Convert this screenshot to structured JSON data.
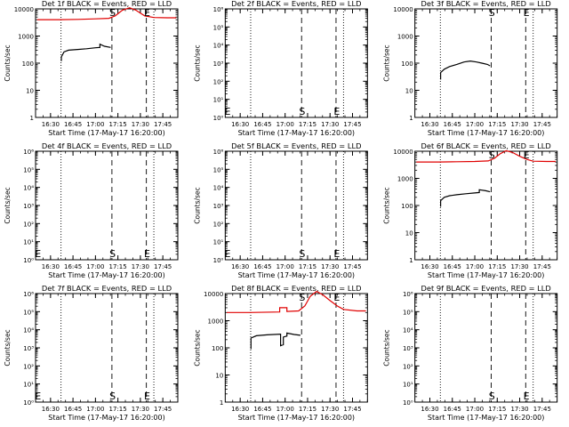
{
  "figure": {
    "x_ticks": [
      "16:30",
      "16:45",
      "17:00",
      "17:15",
      "17:30",
      "17:45"
    ],
    "x_tick_values": [
      16.5,
      16.75,
      17.0,
      17.25,
      17.5,
      17.75
    ],
    "x_range": [
      16.3333,
      17.9167
    ],
    "y_scale": "log",
    "y_range": [
      1,
      10000
    ],
    "dotted_lines_x": [
      16.6167,
      17.65
    ],
    "dashed_lines_x": [
      17.1833,
      17.5667
    ],
    "colors": {
      "events": "#000000",
      "lld": "#e00000",
      "axes": "#000000"
    }
  },
  "chart_data": [
    {
      "type": "line",
      "panel": 1,
      "title": "Det 1f BLACK = Events, RED = LLD",
      "xlabel": "Start Time (17-May-17 16:20:00)",
      "ylabel": "Counts/sec",
      "yticks": [
        "1",
        "10",
        "100",
        "1000",
        "10000"
      ],
      "markers": [
        {
          "label": "S",
          "x": 17.19,
          "y": 10000
        },
        {
          "label": "E",
          "x": 17.575,
          "y": 10000
        }
      ],
      "series": [
        {
          "color": "#000000",
          "x": [
            16.62,
            16.62,
            16.65,
            16.7,
            16.8,
            16.9,
            17.0,
            17.05,
            17.05,
            17.1,
            17.17
          ],
          "y": [
            120,
            170,
            260,
            300,
            320,
            340,
            370,
            380,
            500,
            420,
            380
          ]
        },
        {
          "color": "#e00000",
          "x": [
            16.35,
            16.6,
            16.8,
            17.0,
            17.15,
            17.22,
            17.3,
            17.38,
            17.45,
            17.5,
            17.55,
            17.65,
            17.8,
            17.9
          ],
          "y": [
            4000,
            4000,
            4100,
            4300,
            4500,
            5500,
            9000,
            11000,
            9000,
            7000,
            5500,
            4800,
            4700,
            4700
          ]
        }
      ]
    },
    {
      "type": "line",
      "panel": 2,
      "title": "Det 2f BLACK = Events, RED = LLD",
      "xlabel": "Start Time (17-May-17 16:20:00)",
      "ylabel": "Counts/sec",
      "yticks": [
        "10⁰",
        "10¹",
        "10²",
        "10³",
        "10⁴",
        "10⁵",
        "10⁶"
      ],
      "markers": [
        {
          "label": "E",
          "x": 16.36,
          "y": 1.6
        },
        {
          "label": "S",
          "x": 17.19,
          "y": 1.6
        },
        {
          "label": "E",
          "x": 17.575,
          "y": 1.6
        }
      ],
      "series": []
    },
    {
      "type": "line",
      "panel": 3,
      "title": "Det 3f BLACK = Events, RED = LLD",
      "xlabel": "Start Time (17-May-17 16:20:00)",
      "ylabel": "Counts/sec",
      "yticks": [
        "1",
        "10",
        "100",
        "1000",
        "10000"
      ],
      "markers": [
        {
          "label": "S",
          "x": 17.19,
          "y": 10000
        },
        {
          "label": "E",
          "x": 17.575,
          "y": 10000
        }
      ],
      "series": [
        {
          "color": "#000000",
          "x": [
            16.62,
            16.62,
            16.66,
            16.72,
            16.8,
            16.88,
            16.95,
            17.02,
            17.08,
            17.14,
            17.17
          ],
          "y": [
            25,
            45,
            60,
            75,
            90,
            110,
            120,
            110,
            100,
            90,
            80
          ]
        }
      ]
    },
    {
      "type": "line",
      "panel": 4,
      "title": "Det 4f BLACK = Events, RED = LLD",
      "xlabel": "Start Time (17-May-17 16:20:00)",
      "ylabel": "Counts/sec",
      "yticks": [
        "10⁰",
        "10¹",
        "10²",
        "10³",
        "10⁴",
        "10⁵",
        "10⁶"
      ],
      "markers": [
        {
          "label": "E",
          "x": 16.36,
          "y": 1.6
        },
        {
          "label": "S",
          "x": 17.19,
          "y": 1.6
        },
        {
          "label": "E",
          "x": 17.575,
          "y": 1.6
        }
      ],
      "series": []
    },
    {
      "type": "line",
      "panel": 5,
      "title": "Det 5f BLACK = Events, RED = LLD",
      "xlabel": "Start Time (17-May-17 16:20:00)",
      "ylabel": "Counts/sec",
      "yticks": [
        "10⁰",
        "10¹",
        "10²",
        "10³",
        "10⁴",
        "10⁵",
        "10⁶"
      ],
      "markers": [
        {
          "label": "E",
          "x": 16.36,
          "y": 1.6
        },
        {
          "label": "S",
          "x": 17.19,
          "y": 1.6
        },
        {
          "label": "E",
          "x": 17.575,
          "y": 1.6
        }
      ],
      "series": []
    },
    {
      "type": "line",
      "panel": 6,
      "title": "Det 6f BLACK = Events, RED = LLD",
      "xlabel": "Start Time (17-May-17 16:20:00)",
      "ylabel": "Counts/sec",
      "yticks": [
        "1",
        "10",
        "100",
        "1000",
        "10000"
      ],
      "markers": [
        {
          "label": "S",
          "x": 17.19,
          "y": 10000
        },
        {
          "label": "E",
          "x": 17.575,
          "y": 10000
        }
      ],
      "series": [
        {
          "color": "#000000",
          "x": [
            16.62,
            16.62,
            16.66,
            16.72,
            16.8,
            16.9,
            17.0,
            17.05,
            17.05,
            17.12,
            17.17
          ],
          "y": [
            90,
            150,
            200,
            230,
            250,
            270,
            290,
            300,
            380,
            350,
            320
          ]
        },
        {
          "color": "#e00000",
          "x": [
            16.35,
            16.6,
            16.8,
            17.0,
            17.15,
            17.22,
            17.28,
            17.35,
            17.42,
            17.5,
            17.58,
            17.65,
            17.8,
            17.9
          ],
          "y": [
            4000,
            4000,
            4100,
            4200,
            4400,
            5500,
            8000,
            10500,
            9000,
            6500,
            5000,
            4300,
            4200,
            4200
          ]
        }
      ]
    },
    {
      "type": "line",
      "panel": 7,
      "title": "Det 7f BLACK = Events, RED = LLD",
      "xlabel": "Start Time (17-May-17 16:20:00)",
      "ylabel": "Counts/sec",
      "yticks": [
        "10⁰",
        "10¹",
        "10²",
        "10³",
        "10⁴",
        "10⁵",
        "10⁶"
      ],
      "markers": [
        {
          "label": "E",
          "x": 16.36,
          "y": 1.6
        },
        {
          "label": "S",
          "x": 17.19,
          "y": 1.6
        },
        {
          "label": "E",
          "x": 17.575,
          "y": 1.6
        }
      ],
      "series": []
    },
    {
      "type": "line",
      "panel": 8,
      "title": "Det 8f BLACK = Events, RED = LLD",
      "xlabel": "Start Time (17-May-17 16:20:00)",
      "ylabel": "Counts/sec",
      "yticks": [
        "1",
        "10",
        "100",
        "1000",
        "10000"
      ],
      "markers": [
        {
          "label": "S",
          "x": 17.19,
          "y": 10000
        },
        {
          "label": "E",
          "x": 17.575,
          "y": 10000
        }
      ],
      "series": [
        {
          "color": "#000000",
          "x": [
            16.62,
            16.62,
            16.68,
            16.8,
            16.95,
            16.95,
            16.98,
            16.98,
            17.0,
            17.02,
            17.02,
            17.1,
            17.17
          ],
          "y": [
            90,
            230,
            280,
            300,
            320,
            120,
            130,
            250,
            260,
            270,
            350,
            310,
            290
          ]
        },
        {
          "color": "#e00000",
          "x": [
            16.35,
            16.6,
            16.94,
            16.94,
            17.02,
            17.02,
            17.15,
            17.22,
            17.28,
            17.35,
            17.42,
            17.5,
            17.58,
            17.65,
            17.8,
            17.9
          ],
          "y": [
            2000,
            2000,
            2100,
            3000,
            3000,
            2200,
            2300,
            3500,
            8000,
            12000,
            9000,
            5500,
            3500,
            2600,
            2300,
            2300
          ]
        }
      ]
    },
    {
      "type": "line",
      "panel": 9,
      "title": "Det 9f BLACK = Events, RED = LLD",
      "xlabel": "Start Time (17-May-17 16:20:00)",
      "ylabel": "Counts/sec",
      "yticks": [
        "10⁰",
        "10¹",
        "10²",
        "10³",
        "10⁴",
        "10⁵",
        "10⁶"
      ],
      "markers": [
        {
          "label": "S",
          "x": 17.19,
          "y": 1.6
        },
        {
          "label": "E",
          "x": 17.575,
          "y": 1.6
        }
      ],
      "series": []
    }
  ]
}
